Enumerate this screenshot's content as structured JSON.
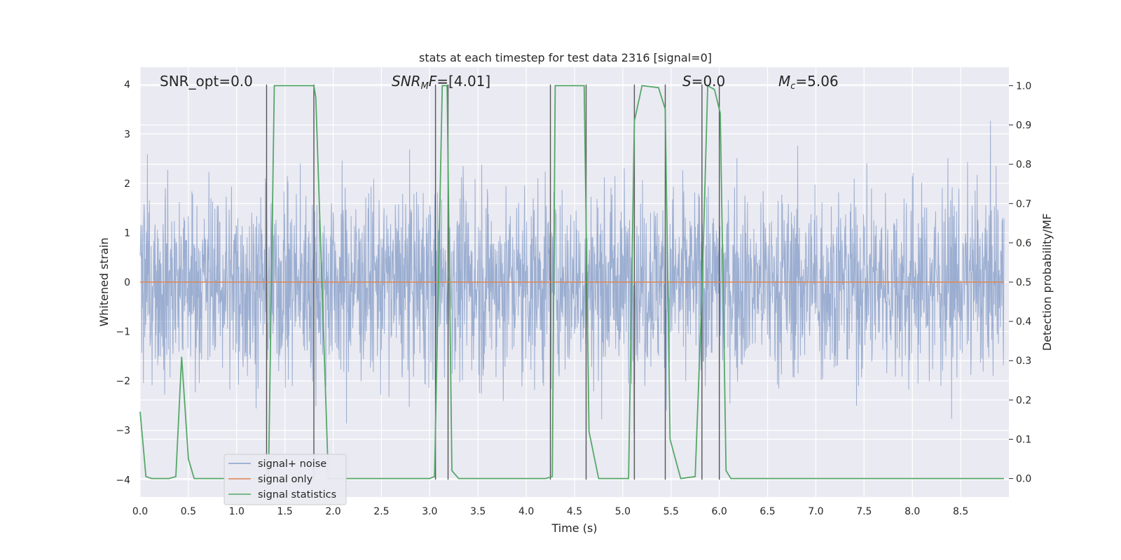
{
  "chart_data": {
    "type": "line",
    "title": "stats at each timestep for test data 2316 [signal=0]",
    "xlabel": "Time (s)",
    "ylabel_left": "Whitened strain",
    "ylabel_right": "Detection probability/MF",
    "xlim": [
      0.0,
      9.0
    ],
    "ylim_left": [
      -4.35,
      4.35
    ],
    "ylim_right": [
      -0.047,
      1.047
    ],
    "x_ticks": [
      "0.0",
      "0.5",
      "1.0",
      "1.5",
      "2.0",
      "2.5",
      "3.0",
      "3.5",
      "4.0",
      "4.5",
      "5.0",
      "5.5",
      "6.0",
      "6.5",
      "7.0",
      "7.5",
      "8.0",
      "8.5"
    ],
    "y_ticks_left": [
      "4",
      "3",
      "2",
      "1",
      "0",
      "−1",
      "−2",
      "−3",
      "−4"
    ],
    "y_ticks_right": [
      "1.0",
      "0.9",
      "0.8",
      "0.7",
      "0.6",
      "0.5",
      "0.4",
      "0.3",
      "0.2",
      "0.1",
      "0.0"
    ],
    "grid": true,
    "legend_position": "lower-left",
    "annotations": {
      "snr_opt": "SNR_opt=0.0",
      "snr_mf": "=[4.01]",
      "s": "=0.0",
      "mc": "=5.06"
    },
    "series": [
      {
        "name": "signal+ noise",
        "color": "#4c72b0",
        "axis": "left",
        "description_values": "noise samples roughly within ±2.5 with peaks near ±3.3"
      },
      {
        "name": "signal only",
        "color": "#dd8452",
        "axis": "left",
        "values_constant": 0.0
      },
      {
        "name": "signal statistics",
        "color": "#55a868",
        "axis": "right",
        "x": [
          0.0,
          0.06,
          0.12,
          0.3,
          0.37,
          0.43,
          0.5,
          0.56,
          1.3,
          1.33,
          1.39,
          1.8,
          1.82,
          1.95,
          3.0,
          3.05,
          3.13,
          3.18,
          3.23,
          3.3,
          4.2,
          4.27,
          4.3,
          4.6,
          4.65,
          4.75,
          5.06,
          5.12,
          5.2,
          5.37,
          5.44,
          5.49,
          5.6,
          5.75,
          5.82,
          5.88,
          5.95,
          6.01,
          6.07,
          6.12,
          8.95
        ],
        "y": [
          0.17,
          0.005,
          0.0,
          0.0,
          0.005,
          0.31,
          0.05,
          0.0,
          0.0,
          0.0,
          1.0,
          1.0,
          0.97,
          0.0,
          0.0,
          0.005,
          1.0,
          1.0,
          0.02,
          0.0,
          0.0,
          0.005,
          1.0,
          1.0,
          0.12,
          0.0,
          0.0,
          0.91,
          1.0,
          0.995,
          0.94,
          0.1,
          0.0,
          0.005,
          0.47,
          1.0,
          0.99,
          0.93,
          0.02,
          0.0,
          0.0
        ]
      }
    ],
    "vertical_markers_x": [
      1.31,
      1.8,
      3.06,
      3.19,
      4.25,
      4.62,
      5.12,
      5.44,
      5.82,
      6.0
    ]
  },
  "legend": {
    "items": [
      {
        "label": "signal+ noise",
        "color": "#4c72b0"
      },
      {
        "label": "signal only",
        "color": "#dd8452"
      },
      {
        "label": "signal statistics",
        "color": "#55a868"
      }
    ]
  },
  "colors": {
    "plot_background": "#eaeaf2",
    "grid": "#ffffff",
    "noise": "#4c72b0",
    "signal": "#dd8452",
    "statistics": "#55a868",
    "markers": "#555555"
  }
}
